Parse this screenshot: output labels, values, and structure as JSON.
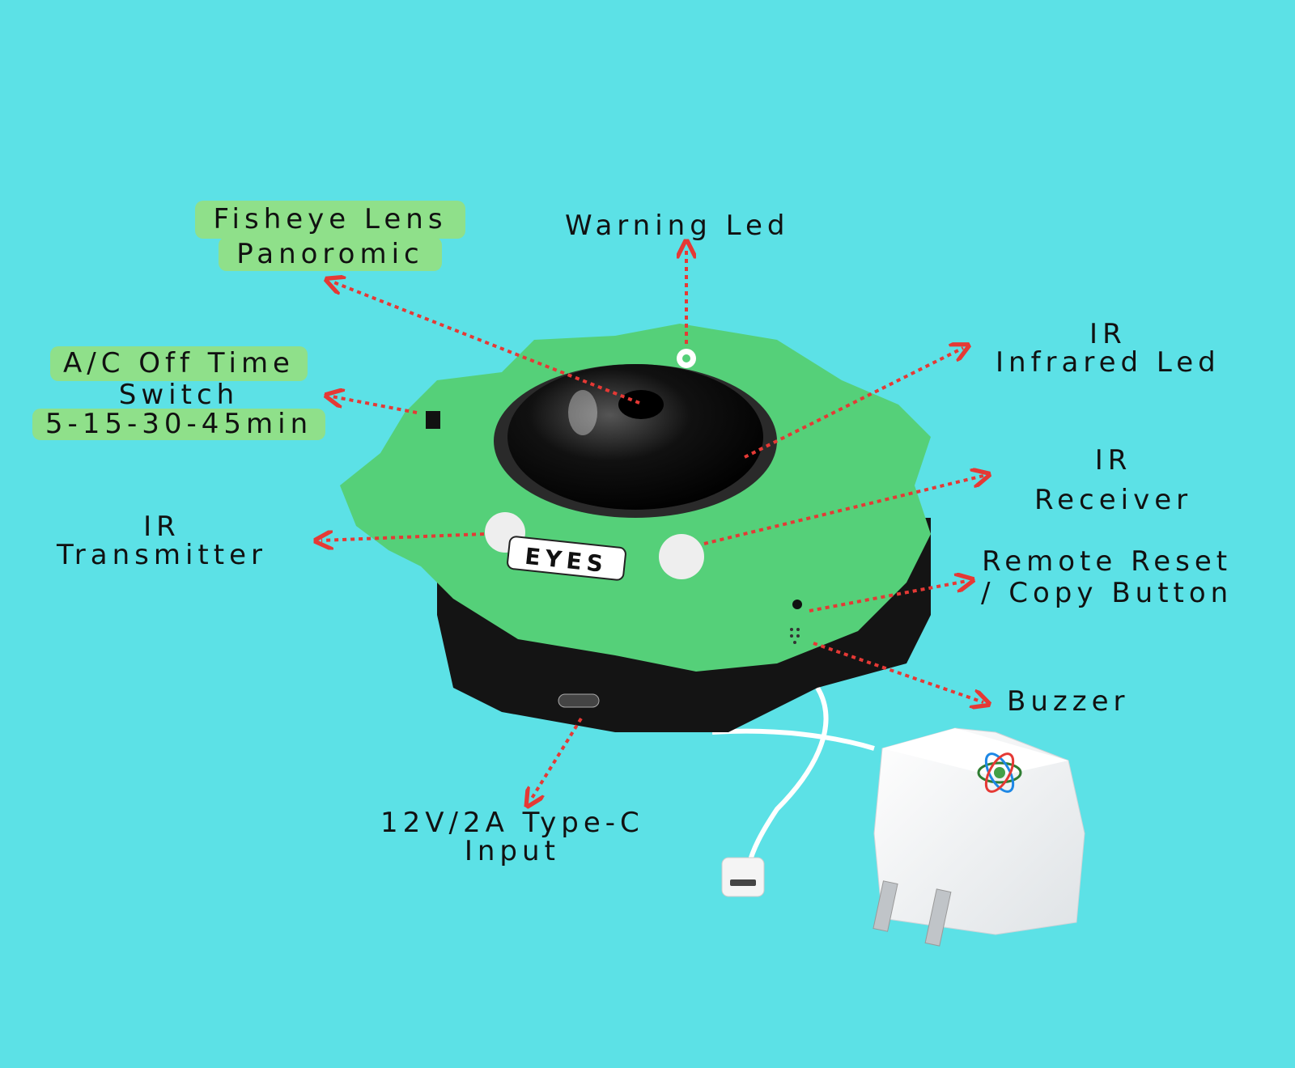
{
  "labels": {
    "fisheye": {
      "line1": "Fisheye Lens",
      "line2": "Panoromic"
    },
    "warning": {
      "line1": "Warning Led"
    },
    "ac_timer": {
      "line1": "A/C Off Time",
      "line2": "Switch",
      "line3": "5-15-30-45min"
    },
    "ir_led": {
      "line1": "IR",
      "line2": "Infrared Led"
    },
    "ir_receiver": {
      "line1": "IR",
      "line2": "Receiver"
    },
    "ir_transmitter": {
      "line1": "IR",
      "line2": "Transmitter"
    },
    "remote_reset": {
      "line1": "Remote Reset",
      "line2": "/ Copy Button"
    },
    "buzzer": {
      "line1": "Buzzer"
    },
    "power_input": {
      "line1": "12V/2A Type-C",
      "line2": "Input"
    }
  },
  "device_badge": "EYES",
  "colors": {
    "background": "#5ce1e6",
    "device_green": "#55d079",
    "device_black": "#141414",
    "arrow": "#e53935",
    "label_highlight": "#8fe08a"
  },
  "icons": [
    "camera-device",
    "fisheye-dome-icon",
    "warning-led-icon",
    "power-adapter-icon",
    "eye-logo-icon"
  ]
}
